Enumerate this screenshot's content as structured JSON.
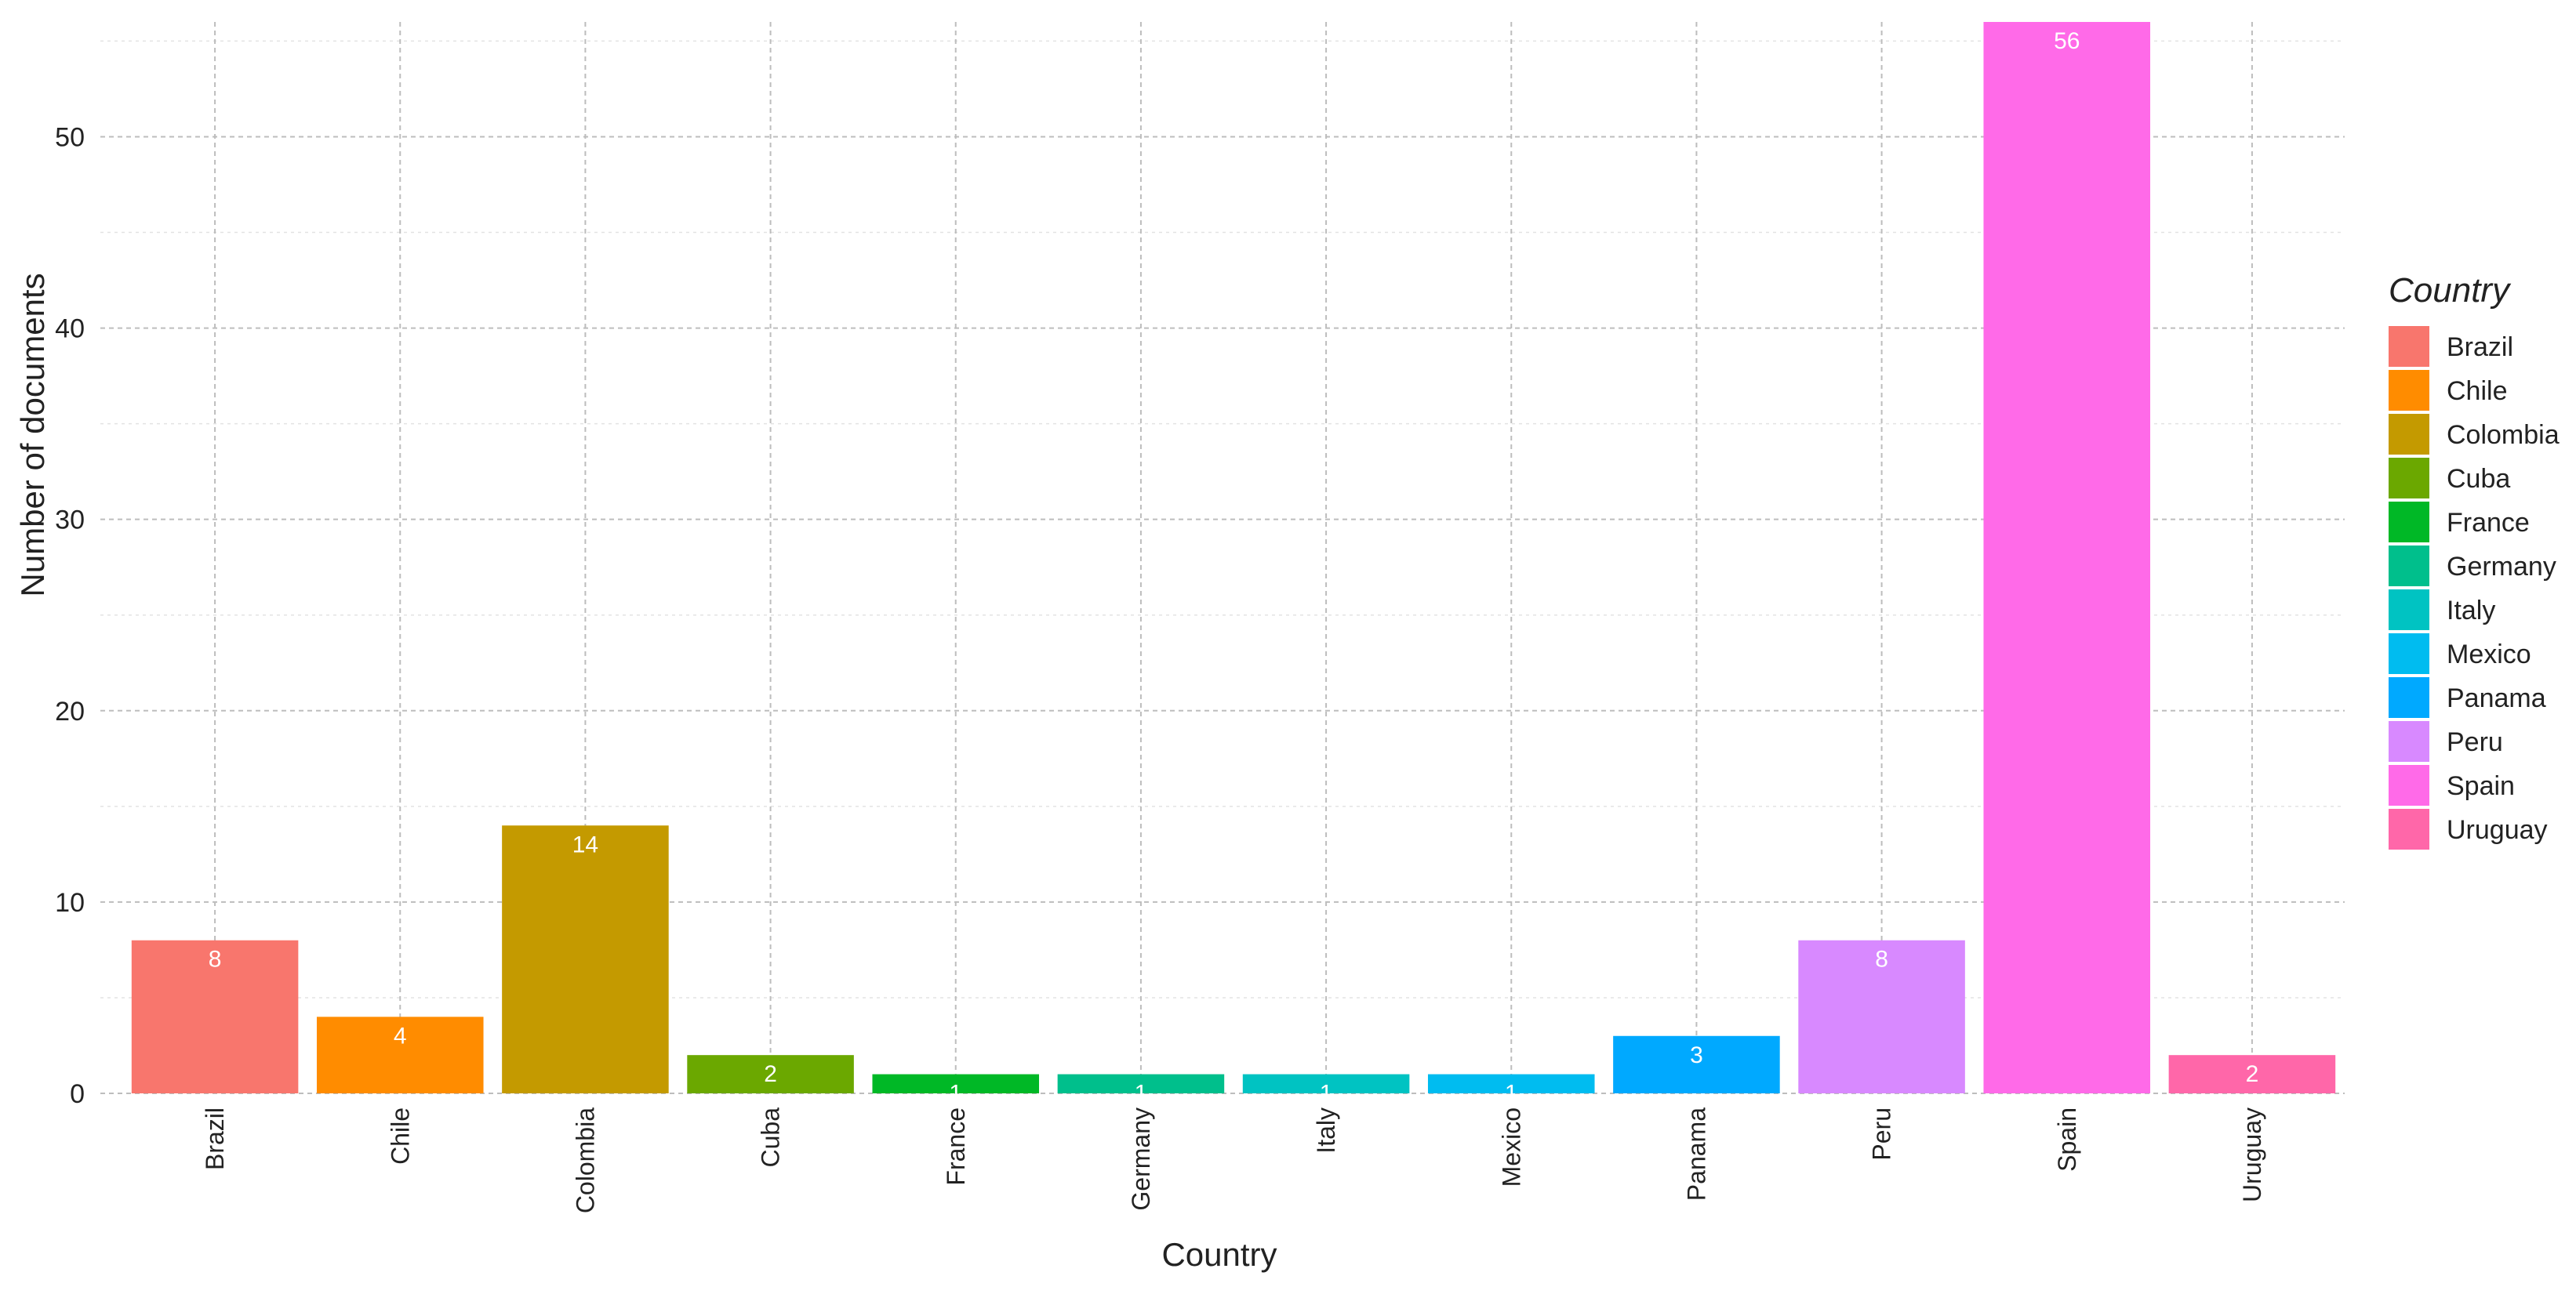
{
  "chart_data": {
    "type": "bar",
    "xlabel": "Country",
    "ylabel": "Number of documents",
    "ylim": [
      0,
      56
    ],
    "y_ticks": [
      "0",
      "10",
      "20",
      "30",
      "40",
      "50"
    ],
    "grid": true,
    "categories": [
      "Brazil",
      "Chile",
      "Colombia",
      "Cuba",
      "France",
      "Germany",
      "Italy",
      "Mexico",
      "Panama",
      "Peru",
      "Spain",
      "Uruguay"
    ],
    "values": [
      8,
      4,
      14,
      2,
      1,
      1,
      1,
      1,
      3,
      8,
      56,
      2
    ],
    "colors": [
      "#F8766D",
      "#FF8C00",
      "#C49A00",
      "#6BA800",
      "#00B826",
      "#00BF8C",
      "#00C3C2",
      "#00BCF0",
      "#00A9FF",
      "#D889FF",
      "#FF6AE8",
      "#FF67A9"
    ],
    "legend": {
      "title": "Country",
      "placement": "right"
    }
  }
}
